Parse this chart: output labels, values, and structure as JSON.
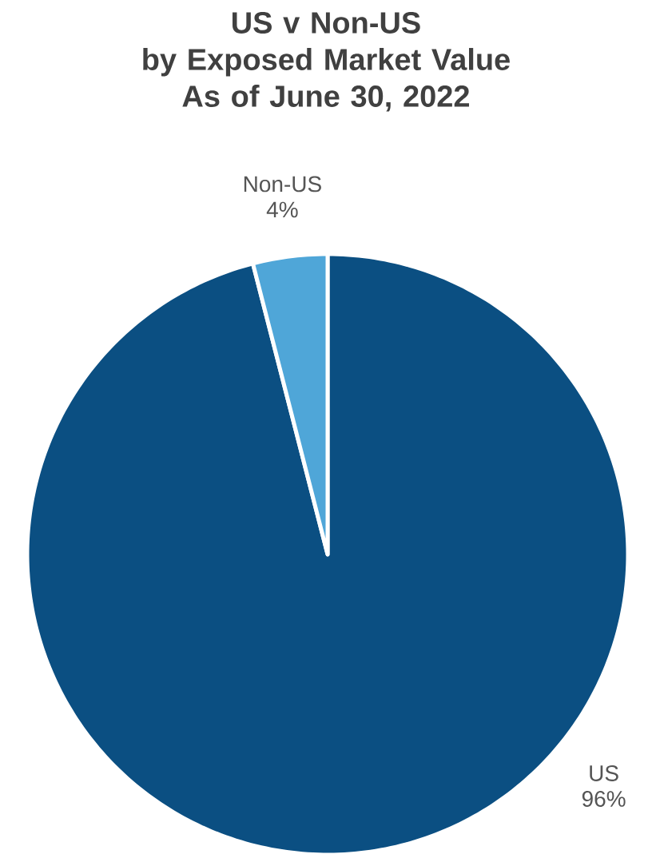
{
  "chart_data": {
    "type": "pie",
    "title": "US v Non-US\nby Exposed Market Value\nAs of June 30, 2022",
    "categories": [
      "US",
      "Non-US"
    ],
    "values": [
      96,
      4
    ],
    "colors": [
      "#0b4f82",
      "#4fa6d8"
    ],
    "value_labels": [
      "96%",
      "4%"
    ]
  }
}
